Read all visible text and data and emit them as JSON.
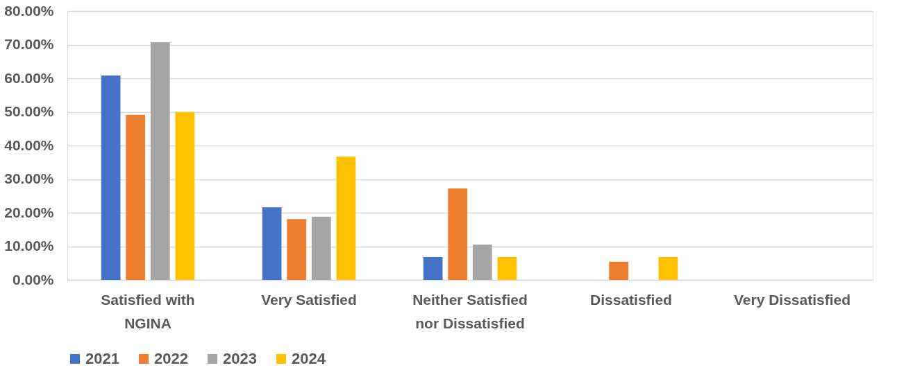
{
  "chart_data": {
    "type": "bar",
    "categories": [
      "Satisfied with\nNGINA",
      "Very Satisfied",
      "Neither Satisfied\nnor Dissatisfied",
      "Dissatisfied",
      "Very Dissatisfied"
    ],
    "series": [
      {
        "name": "2021",
        "color": "#4472c4",
        "values": [
          60.8,
          21.6,
          6.8,
          0,
          0
        ]
      },
      {
        "name": "2022",
        "color": "#ed7d31",
        "values": [
          49.1,
          18.1,
          27.2,
          5.4,
          0
        ]
      },
      {
        "name": "2023",
        "color": "#a5a5a5",
        "values": [
          70.7,
          18.8,
          10.5,
          0,
          0
        ]
      },
      {
        "name": "2024",
        "color": "#ffc000",
        "values": [
          50.0,
          36.7,
          6.8,
          6.8,
          0
        ]
      }
    ],
    "ylim": [
      0,
      80
    ],
    "yticks": [
      {
        "value": 0,
        "label": "0.00%"
      },
      {
        "value": 10,
        "label": "10.00%"
      },
      {
        "value": 20,
        "label": "20.00%"
      },
      {
        "value": 30,
        "label": "30.00%"
      },
      {
        "value": 40,
        "label": "40.00%"
      },
      {
        "value": 50,
        "label": "50.00%"
      },
      {
        "value": 60,
        "label": "60.00%"
      },
      {
        "value": 70,
        "label": "70.00%"
      },
      {
        "value": 80,
        "label": "80.00%"
      }
    ],
    "grid": "y",
    "legend": "bottom"
  }
}
